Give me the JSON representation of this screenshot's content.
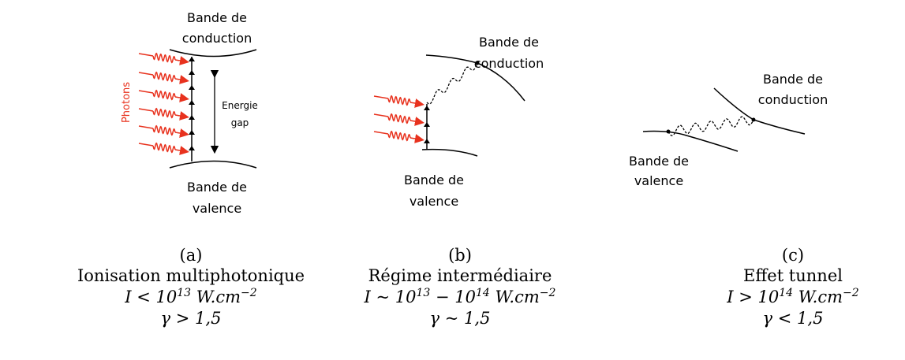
{
  "panels": [
    {
      "conduction": [
        "Bande de",
        "conduction"
      ],
      "valence": [
        "Bande de",
        "valence"
      ],
      "photons": "Photons",
      "gap": [
        "Energie",
        "gap"
      ],
      "caption": "(a)",
      "title": "Ionisation multiphotonique",
      "intensity": [
        "I < 10",
        "13",
        " W.cm",
        "−2"
      ],
      "gamma": "γ > 1,5"
    },
    {
      "conduction": [
        "Bande de",
        "conduction"
      ],
      "valence": [
        "Bande de",
        "valence"
      ],
      "caption": "(b)",
      "title": "Régime intermédiaire",
      "intensity": [
        "I ~ 10",
        "13",
        " − 10",
        "14",
        " W.cm",
        "−2"
      ],
      "gamma": "γ ~ 1,5"
    },
    {
      "conduction": [
        "Bande de",
        "conduction"
      ],
      "valence": [
        "Bande de",
        "valence"
      ],
      "caption": "(c)",
      "title": "Effet tunnel",
      "intensity": [
        "I > 10",
        "14",
        " W.cm",
        "−2"
      ],
      "gamma": "γ < 1,5"
    }
  ]
}
